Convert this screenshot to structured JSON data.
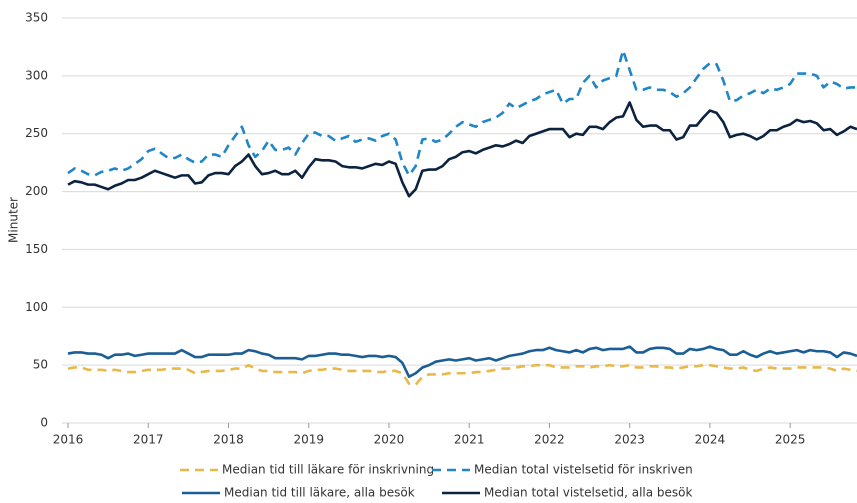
{
  "chart_data": {
    "type": "line",
    "y_label": "Minuter",
    "ylim": [
      0,
      350
    ],
    "yticks": [
      0,
      50,
      100,
      150,
      200,
      250,
      300,
      350
    ],
    "xlim": [
      2016,
      2025.833
    ],
    "xticks": [
      2016,
      2017,
      2018,
      2019,
      2020,
      2021,
      2022,
      2023,
      2024,
      2025
    ],
    "grid": true,
    "legend": "bottom",
    "x": [
      2016,
      2016.083,
      2016.167,
      2016.25,
      2016.333,
      2016.417,
      2016.5,
      2016.583,
      2016.667,
      2016.75,
      2016.833,
      2016.917,
      2017,
      2017.083,
      2017.167,
      2017.25,
      2017.333,
      2017.417,
      2017.5,
      2017.583,
      2017.667,
      2017.75,
      2017.833,
      2017.917,
      2018,
      2018.083,
      2018.167,
      2018.25,
      2018.333,
      2018.417,
      2018.5,
      2018.583,
      2018.667,
      2018.75,
      2018.833,
      2018.917,
      2019,
      2019.083,
      2019.167,
      2019.25,
      2019.333,
      2019.417,
      2019.5,
      2019.583,
      2019.667,
      2019.75,
      2019.833,
      2019.917,
      2020,
      2020.083,
      2020.167,
      2020.25,
      2020.333,
      2020.417,
      2020.5,
      2020.583,
      2020.667,
      2020.75,
      2020.833,
      2020.917,
      2021,
      2021.083,
      2021.167,
      2021.25,
      2021.333,
      2021.417,
      2021.5,
      2021.583,
      2021.667,
      2021.75,
      2021.833,
      2021.917,
      2022,
      2022.083,
      2022.167,
      2022.25,
      2022.333,
      2022.417,
      2022.5,
      2022.583,
      2022.667,
      2022.75,
      2022.833,
      2022.917,
      2023,
      2023.083,
      2023.167,
      2023.25,
      2023.333,
      2023.417,
      2023.5,
      2023.583,
      2023.667,
      2023.75,
      2023.833,
      2023.917,
      2024,
      2024.083,
      2024.167,
      2024.25,
      2024.333,
      2024.417,
      2024.5,
      2024.583,
      2024.667,
      2024.75,
      2024.833,
      2024.917,
      2025,
      2025.083,
      2025.167,
      2025.25,
      2025.333,
      2025.417,
      2025.5,
      2025.583,
      2025.667,
      2025.75,
      2025.833
    ],
    "series": [
      {
        "name": "Median tid till läkare för inskrivning",
        "color": "#e8b84b",
        "style": "dashed",
        "values": [
          47,
          48,
          48,
          46,
          46,
          46,
          45,
          46,
          45,
          44,
          44,
          45,
          46,
          46,
          46,
          47,
          47,
          47,
          46,
          43,
          44,
          45,
          45,
          45,
          46,
          47,
          47,
          50,
          47,
          45,
          45,
          44,
          44,
          44,
          44,
          43,
          45,
          46,
          46,
          47,
          47,
          46,
          45,
          45,
          45,
          45,
          44,
          44,
          45,
          45,
          43,
          34,
          33,
          40,
          42,
          42,
          42,
          43,
          43,
          43,
          43,
          44,
          44,
          45,
          46,
          47,
          47,
          48,
          49,
          49,
          50,
          50,
          50,
          48,
          48,
          48,
          49,
          49,
          48,
          49,
          49,
          50,
          49,
          49,
          50,
          48,
          48,
          49,
          49,
          48,
          48,
          47,
          48,
          49,
          49,
          50,
          50,
          49,
          48,
          47,
          47,
          48,
          46,
          45,
          47,
          48,
          47,
          47,
          47,
          48,
          48,
          48,
          48,
          48,
          47,
          45,
          47,
          46,
          45
        ]
      },
      {
        "name": "Median total vistelsetid för inskriven",
        "color": "#1f86c8",
        "style": "dashed",
        "values": [
          216,
          220,
          218,
          215,
          214,
          217,
          218,
          220,
          218,
          220,
          224,
          228,
          235,
          237,
          233,
          229,
          229,
          232,
          228,
          225,
          226,
          232,
          232,
          230,
          240,
          248,
          256,
          240,
          230,
          235,
          244,
          236,
          236,
          238,
          232,
          242,
          250,
          251,
          248,
          248,
          244,
          246,
          248,
          243,
          245,
          246,
          244,
          248,
          250,
          245,
          225,
          214,
          222,
          245,
          246,
          243,
          245,
          250,
          256,
          260,
          258,
          256,
          260,
          262,
          264,
          268,
          276,
          272,
          275,
          278,
          280,
          284,
          286,
          288,
          276,
          280,
          280,
          294,
          300,
          290,
          296,
          298,
          300,
          322,
          305,
          288,
          288,
          290,
          288,
          288,
          286,
          282,
          285,
          290,
          298,
          306,
          311,
          310,
          296,
          278,
          279,
          283,
          285,
          288,
          285,
          289,
          288,
          290,
          293,
          302,
          302,
          302,
          300,
          290,
          295,
          293,
          289,
          290,
          290
        ]
      },
      {
        "name": "Median tid till läkare, alla besök",
        "color": "#1b5e96",
        "style": "solid",
        "values": [
          60,
          61,
          61,
          60,
          60,
          59,
          56,
          59,
          59,
          60,
          58,
          59,
          60,
          60,
          60,
          60,
          60,
          63,
          60,
          57,
          57,
          59,
          59,
          59,
          59,
          60,
          60,
          63,
          62,
          60,
          59,
          56,
          56,
          56,
          56,
          55,
          58,
          58,
          59,
          60,
          60,
          59,
          59,
          58,
          57,
          58,
          58,
          57,
          58,
          57,
          52,
          40,
          43,
          48,
          50,
          53,
          54,
          55,
          54,
          55,
          56,
          54,
          55,
          56,
          54,
          56,
          58,
          59,
          60,
          62,
          63,
          63,
          65,
          63,
          62,
          61,
          63,
          61,
          64,
          65,
          63,
          64,
          64,
          64,
          66,
          61,
          61,
          64,
          65,
          65,
          64,
          60,
          60,
          64,
          63,
          64,
          66,
          64,
          63,
          59,
          59,
          62,
          59,
          57,
          60,
          62,
          60,
          61,
          62,
          63,
          61,
          63,
          62,
          62,
          61,
          57,
          61,
          60,
          58
        ]
      },
      {
        "name": "Median total vistelsetid, alla besök",
        "color": "#0c2340",
        "style": "solid",
        "values": [
          206,
          209,
          208,
          206,
          206,
          204,
          202,
          205,
          207,
          210,
          210,
          212,
          215,
          218,
          216,
          214,
          212,
          214,
          214,
          207,
          208,
          214,
          216,
          216,
          215,
          222,
          226,
          232,
          222,
          215,
          216,
          218,
          215,
          215,
          218,
          212,
          221,
          228,
          227,
          227,
          226,
          222,
          221,
          221,
          220,
          222,
          224,
          223,
          226,
          224,
          208,
          196,
          202,
          218,
          219,
          219,
          222,
          228,
          230,
          234,
          235,
          233,
          236,
          238,
          240,
          239,
          241,
          244,
          242,
          248,
          250,
          252,
          254,
          254,
          254,
          247,
          250,
          249,
          256,
          256,
          254,
          260,
          264,
          265,
          277,
          262,
          256,
          257,
          257,
          253,
          253,
          245,
          247,
          257,
          257,
          264,
          270,
          268,
          260,
          247,
          249,
          250,
          248,
          245,
          248,
          253,
          253,
          256,
          258,
          262,
          260,
          261,
          259,
          253,
          254,
          249,
          252,
          256,
          254
        ]
      }
    ]
  }
}
